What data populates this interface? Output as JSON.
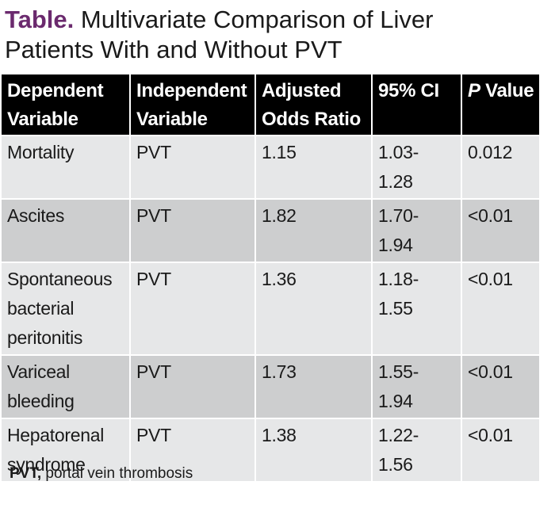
{
  "caption": {
    "label": "Table.",
    "title": "Multivariate Comparison of Liver Patients With and Without PVT"
  },
  "table": {
    "headers": [
      {
        "line1": "Dependent",
        "line2": "Variable"
      },
      {
        "line1": "Independent",
        "line2": "Variable"
      },
      {
        "line1": "Adjusted",
        "line2": "Odds Ratio"
      },
      {
        "line1": "95% CI",
        "line2": ""
      },
      {
        "italic": "P",
        "rest": " Value"
      }
    ],
    "rows": [
      {
        "dependent": [
          "Mortality"
        ],
        "independent": "PVT",
        "odds_ratio": "1.15",
        "ci": [
          "1.03-",
          "1.28"
        ],
        "p_value": "0.012"
      },
      {
        "dependent": [
          "Ascites"
        ],
        "independent": "PVT",
        "odds_ratio": "1.82",
        "ci": [
          "1.70-",
          "1.94"
        ],
        "p_value": "<0.01"
      },
      {
        "dependent": [
          "Spontaneous",
          "bacterial",
          "peritonitis"
        ],
        "independent": "PVT",
        "odds_ratio": "1.36",
        "ci": [
          "1.18-",
          "1.55"
        ],
        "p_value": "<0.01"
      },
      {
        "dependent": [
          "Variceal",
          "bleeding"
        ],
        "independent": "PVT",
        "odds_ratio": "1.73",
        "ci": [
          "1.55-",
          "1.94"
        ],
        "p_value": "<0.01"
      },
      {
        "dependent": [
          "Hepatorenal",
          "syndrome"
        ],
        "independent": "PVT",
        "odds_ratio": "1.38",
        "ci": [
          "1.22-",
          "1.56"
        ],
        "p_value": "<0.01"
      }
    ]
  },
  "footnote": {
    "abbr": "PVT,",
    "definition": " portal vein thrombosis"
  },
  "colors": {
    "label": "#6b2a6e",
    "header_bg": "#000000",
    "row_light": "#e6e7e8",
    "row_dark": "#cdcecf"
  }
}
